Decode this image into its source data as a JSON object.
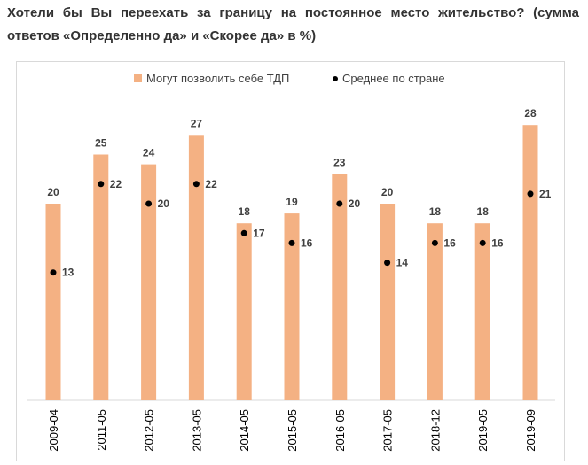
{
  "title": "Хотели бы Вы переехать за границу на постоянное место жительство? (сумма ответов «Определенно да» и «Скорее да» в %)",
  "chart_data": {
    "type": "bar",
    "title": "Хотели бы Вы переехать за границу на постоянное место жительство? (сумма ответов «Определенно да» и «Скорее да» в %)",
    "categories": [
      "2009-04",
      "2011-05",
      "2012-05",
      "2013-05",
      "2014-05",
      "2015-05",
      "2016-05",
      "2017-05",
      "2018-12",
      "2019-05",
      "2019-09"
    ],
    "series": [
      {
        "name": "Могут позволить себе ТДП",
        "type": "bar",
        "color": "#f4b183",
        "values": [
          20,
          25,
          24,
          27,
          18,
          19,
          23,
          20,
          18,
          18,
          28
        ]
      },
      {
        "name": "Среднее по стране",
        "type": "scatter",
        "color": "#000000",
        "values": [
          13,
          22,
          20,
          22,
          17,
          16,
          20,
          14,
          16,
          16,
          21
        ]
      }
    ],
    "legend": "top-center",
    "ylim": [
      0,
      30
    ],
    "grid": false
  }
}
